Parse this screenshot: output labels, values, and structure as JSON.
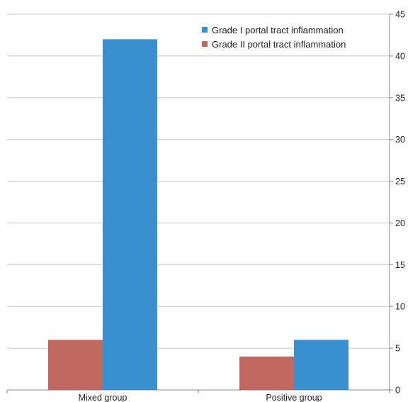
{
  "chart_data": {
    "type": "bar",
    "categories": [
      "Mixed group",
      "Positive group"
    ],
    "series": [
      {
        "name": "Grade II portal tract inflammation",
        "values": [
          6,
          4
        ],
        "color": "#c0685f"
      },
      {
        "name": "Grade I portal tract inflammation",
        "values": [
          42,
          6
        ],
        "color": "#3a8fce"
      }
    ],
    "legend": [
      {
        "label": "Grade I portal tract inflammation",
        "color": "#3a8fce"
      },
      {
        "label": "Grade II portal tract inflammation",
        "color": "#c0685f"
      }
    ],
    "y_ticks": [
      "0",
      "5",
      "10",
      "15",
      "20",
      "25",
      "30",
      "35",
      "40",
      "45"
    ],
    "ylim": [
      0,
      45
    ],
    "y_axis_side": "right",
    "grid": true,
    "legend_position": "top-right",
    "title": "",
    "xlabel": "",
    "ylabel": ""
  }
}
